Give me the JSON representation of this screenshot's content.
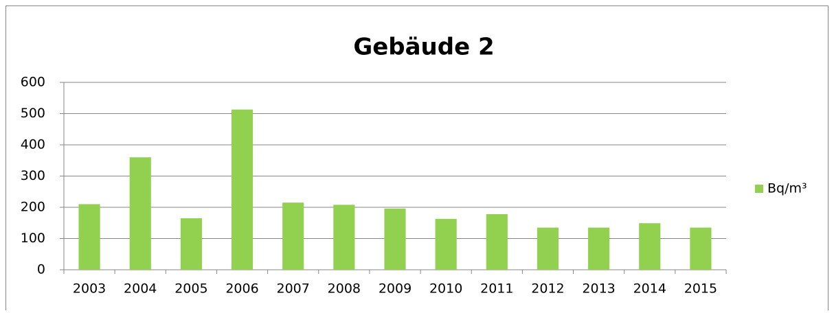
{
  "chart_data": {
    "type": "bar",
    "title": "Gebäude 2",
    "categories": [
      "2003",
      "2004",
      "2005",
      "2006",
      "2007",
      "2008",
      "2009",
      "2010",
      "2011",
      "2012",
      "2013",
      "2014",
      "2015"
    ],
    "series": [
      {
        "name": "Bq/m³",
        "color": "#92d050",
        "values": [
          210,
          360,
          165,
          513,
          215,
          208,
          196,
          163,
          178,
          135,
          135,
          149,
          135
        ]
      }
    ],
    "ylim": [
      0,
      600
    ],
    "yticks": [
      0,
      100,
      200,
      300,
      400,
      500,
      600
    ],
    "grid": true,
    "legend": "right"
  }
}
